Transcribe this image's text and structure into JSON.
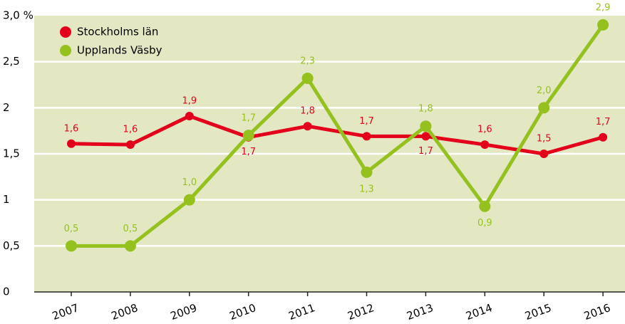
{
  "chart_data": {
    "type": "line",
    "categories": [
      "2007",
      "2008",
      "2009",
      "2010",
      "2011",
      "2012",
      "2013",
      "2014",
      "2015",
      "2016"
    ],
    "series": [
      {
        "name": "Stockholms län",
        "color": "#e3001b",
        "values": [
          1.61,
          1.6,
          1.91,
          1.68,
          1.8,
          1.69,
          1.69,
          1.6,
          1.5,
          1.68
        ],
        "value_labels": [
          "1,6",
          "1,6",
          "1,9",
          "1,7",
          "1,8",
          "1,7",
          "1,7",
          "1,6",
          "1,5",
          "1,7"
        ]
      },
      {
        "name": "Upplands Väsby",
        "color": "#95c11f",
        "values": [
          0.5,
          0.5,
          1.0,
          1.7,
          2.32,
          1.3,
          1.8,
          0.93,
          2.0,
          2.9
        ],
        "value_labels": [
          "0,5",
          "0,5",
          "1,0",
          "1,7",
          "2,3",
          "1,3",
          "1,8",
          "0,9",
          "2,0",
          "2,9"
        ]
      }
    ],
    "ylim": [
      0,
      3
    ],
    "yticks": [
      0,
      {
        "value": 0.5,
        "label": "0,5"
      },
      1,
      {
        "value": 1.5,
        "label": "1,5"
      },
      2,
      {
        "value": 2.5,
        "label": "2,5"
      },
      {
        "value": 3,
        "label": "3,0 %"
      }
    ],
    "grid": true,
    "legend": "top-left"
  }
}
